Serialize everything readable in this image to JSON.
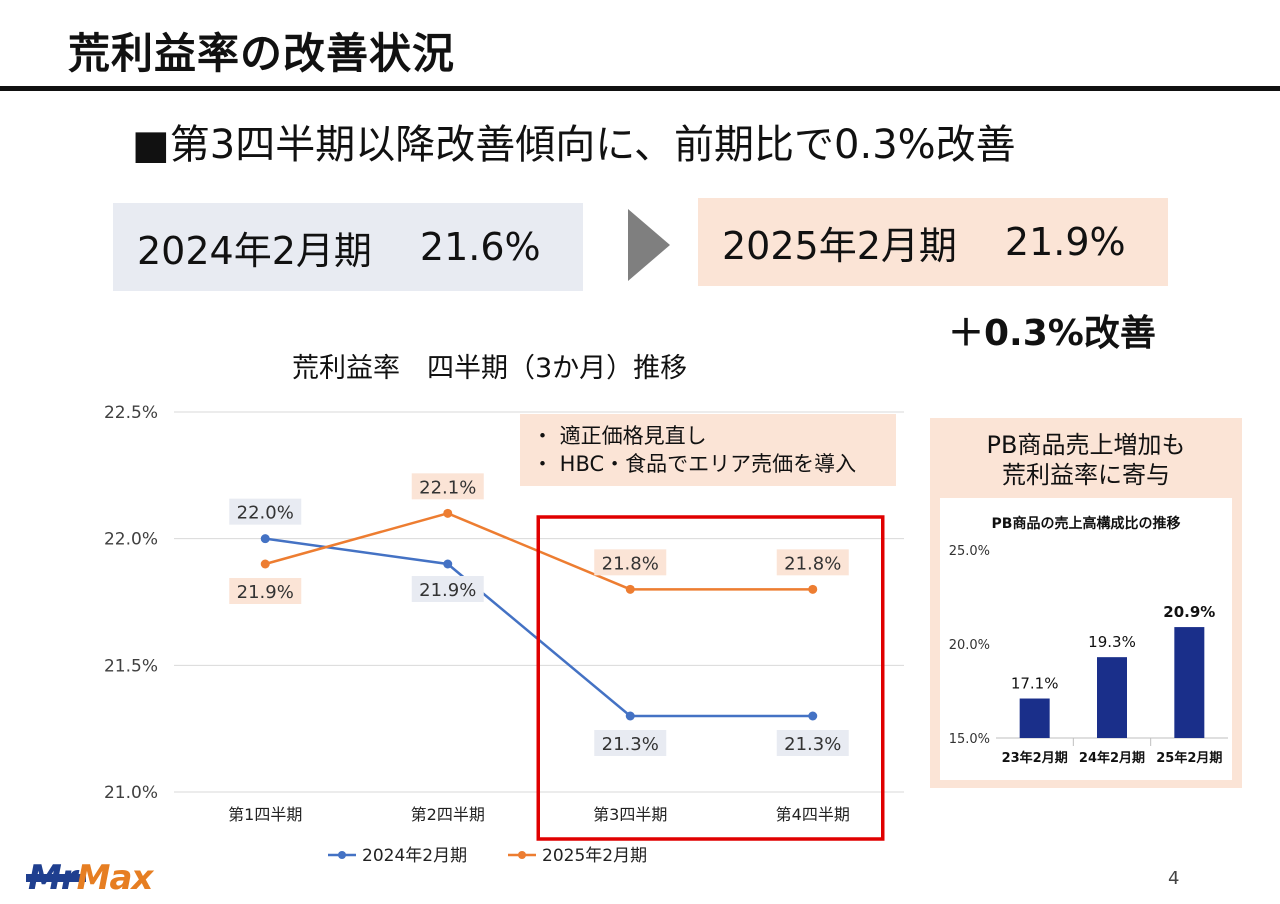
{
  "slide": {
    "title": "荒利益率の改善状況",
    "headline": "■第3四半期以降改善傾向に、前期比で0.3%改善",
    "box_prev": {
      "period": "2024年2月期",
      "value": "21.6%"
    },
    "box_curr": {
      "period": "2025年2月期",
      "value": "21.9%"
    },
    "improvement": "＋0.3%改善",
    "note": [
      "・ 適正価格見直し",
      "・ HBC・食品でエリア売価を導入"
    ],
    "pb_heading_line1": "PB商品売上増加も",
    "pb_heading_line2": "荒利益率に寄与",
    "logo_left": "Mr",
    "logo_right": "Max",
    "page_number": "4"
  },
  "chart_data": [
    {
      "type": "line",
      "title": "荒利益率　四半期（3か月）推移",
      "categories": [
        "第1四半期",
        "第2四半期",
        "第3四半期",
        "第4四半期"
      ],
      "series": [
        {
          "name": "2024年2月期",
          "values": [
            22.0,
            21.9,
            21.3,
            21.3
          ],
          "labels": [
            "22.0%",
            "21.9%",
            "21.3%",
            "21.3%"
          ],
          "color": "#4472c4",
          "label_bg": "#e8ebf2"
        },
        {
          "name": "2025年2月期",
          "values": [
            21.9,
            22.1,
            21.8,
            21.8
          ],
          "labels": [
            "21.9%",
            "22.1%",
            "21.8%",
            "21.8%"
          ],
          "color": "#ed7d31",
          "label_bg": "#fbe4d6"
        }
      ],
      "yticks": [
        21.0,
        21.5,
        22.0,
        22.5
      ],
      "ytick_labels": [
        "21.0%",
        "21.5%",
        "22.0%",
        "22.5%"
      ],
      "ylim": [
        21.0,
        22.5
      ],
      "grid": true,
      "legend": "bottom",
      "highlight": {
        "categories": [
          "第3四半期",
          "第4四半期"
        ],
        "color": "#e00000"
      }
    },
    {
      "type": "bar",
      "title": "PB商品の売上高構成比の推移",
      "categories": [
        "23年2月期",
        "24年2月期",
        "25年2月期"
      ],
      "values": [
        17.1,
        19.3,
        20.9
      ],
      "labels": [
        "17.1%",
        "19.3%",
        "20.9%"
      ],
      "yticks": [
        15.0,
        20.0,
        25.0
      ],
      "ytick_labels": [
        "15.0%",
        "20.0%",
        "25.0%"
      ],
      "ylim": [
        15.0,
        25.0
      ],
      "color": "#1a2f8a"
    }
  ]
}
